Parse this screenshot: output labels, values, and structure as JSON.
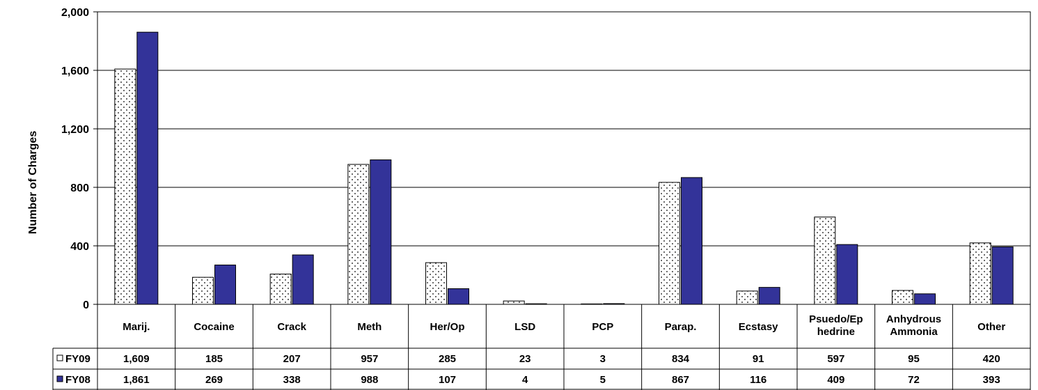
{
  "chart_data": {
    "type": "bar",
    "ylabel": "Number of Charges",
    "ylim": [
      0,
      2000
    ],
    "yticks": [
      0,
      400,
      800,
      1200,
      1600,
      2000
    ],
    "ytick_labels": [
      "0",
      "400",
      "800",
      "1,200",
      "1,600",
      "2,000"
    ],
    "categories": [
      [
        "Marij."
      ],
      [
        "Cocaine"
      ],
      [
        "Crack"
      ],
      [
        "Meth"
      ],
      [
        "Her/Op"
      ],
      [
        "LSD"
      ],
      [
        "PCP"
      ],
      [
        "Parap."
      ],
      [
        "Ecstasy"
      ],
      [
        "Psuedo/Ep",
        "hedrine"
      ],
      [
        "Anhydrous",
        "Ammonia"
      ],
      [
        "Other"
      ]
    ],
    "series": [
      {
        "name": "FY09",
        "values": [
          1609,
          185,
          207,
          957,
          285,
          23,
          3,
          834,
          91,
          597,
          95,
          420
        ],
        "labels": [
          "1,609",
          "185",
          "207",
          "957",
          "285",
          "23",
          "3",
          "834",
          "91",
          "597",
          "95",
          "420"
        ],
        "fill": "dotted-white"
      },
      {
        "name": "FY08",
        "values": [
          1861,
          269,
          338,
          988,
          107,
          4,
          5,
          867,
          116,
          409,
          72,
          393
        ],
        "labels": [
          "1,861",
          "269",
          "338",
          "988",
          "107",
          "4",
          "5",
          "867",
          "116",
          "409",
          "72",
          "393"
        ],
        "fill": "#333399"
      }
    ],
    "grid": true,
    "legend": "data-table-left"
  }
}
